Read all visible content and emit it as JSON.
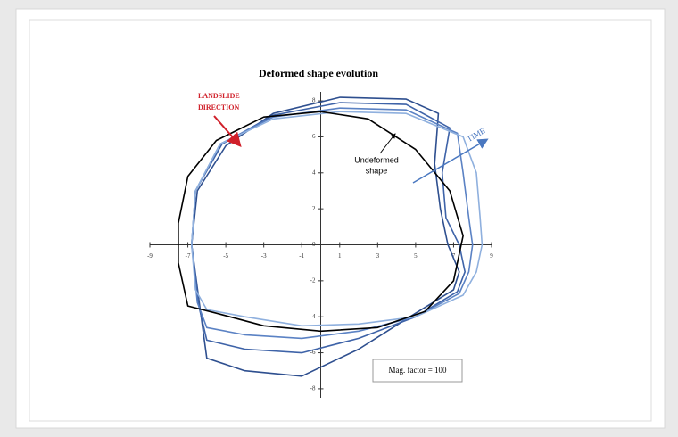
{
  "chart_data": {
    "type": "line",
    "title": "Deformed shape evolution",
    "xlim": [
      -9,
      9
    ],
    "ylim": [
      -8.5,
      8.5
    ],
    "xticks": [
      -9,
      -7,
      -5,
      -3,
      -1,
      1,
      3,
      5,
      7,
      9
    ],
    "yticks": [
      -8,
      -6,
      -4,
      -2,
      0,
      2,
      4,
      6,
      8
    ],
    "series": [
      {
        "color": "#2e4f8f",
        "x": [
          -6.8,
          -6.5,
          -5,
          -2.5,
          1,
          4.5,
          6.2,
          6,
          6.3,
          6.7,
          7.3,
          7,
          5,
          2,
          -1,
          -4,
          -6,
          -6.3,
          -6.8
        ],
        "values": [
          0,
          3,
          5.5,
          7.3,
          8.2,
          8.1,
          7.3,
          4.5,
          2,
          0,
          -1.5,
          -2.5,
          -3.8,
          -5.8,
          -7.3,
          -7,
          -6.3,
          -4,
          0
        ]
      },
      {
        "color": "#3e63a8",
        "x": [
          -6.8,
          -6.6,
          -5.2,
          -2.5,
          1,
          4.5,
          6.8,
          6.4,
          6.6,
          7.3,
          7.6,
          7.2,
          5,
          2,
          -1,
          -4,
          -6,
          -6.4,
          -6.8
        ],
        "values": [
          0,
          3,
          5.6,
          7.2,
          7.9,
          7.8,
          6.5,
          4,
          1.5,
          0,
          -1.5,
          -2.6,
          -4,
          -5.2,
          -6,
          -5.8,
          -5.3,
          -3.5,
          0
        ]
      },
      {
        "color": "#5b82c4",
        "x": [
          -6.8,
          -6.6,
          -5.3,
          -2.5,
          1,
          4.5,
          7.2,
          7.5,
          7.8,
          8,
          7.8,
          7.3,
          5,
          2,
          -1,
          -4,
          -6,
          -6.5,
          -6.8
        ],
        "values": [
          0,
          3,
          5.6,
          7.1,
          7.6,
          7.5,
          6.2,
          4,
          1.5,
          0,
          -1.5,
          -2.7,
          -4,
          -4.8,
          -5.2,
          -5,
          -4.6,
          -3.2,
          0
        ]
      },
      {
        "color": "#8fb0de",
        "x": [
          -6.8,
          -6.6,
          -5.3,
          -2.5,
          1,
          4.5,
          7.5,
          8.2,
          8.4,
          8.5,
          8.2,
          7.5,
          5,
          2,
          -1,
          -4,
          -6,
          -6.6,
          -6.8
        ],
        "values": [
          0,
          3,
          5.6,
          7,
          7.4,
          7.3,
          6,
          4,
          1.5,
          0,
          -1.5,
          -2.8,
          -4,
          -4.4,
          -4.5,
          -4,
          -3.6,
          -2.5,
          0
        ]
      },
      {
        "color": "#000000",
        "x": [
          -7.5,
          -7,
          -5.5,
          -3,
          0,
          2.5,
          5,
          6.8,
          7.5,
          7,
          5.5,
          3,
          0,
          -3,
          -5.5,
          -7,
          -7.5,
          -7.5
        ],
        "values": [
          1.2,
          3.8,
          5.8,
          7.1,
          7.4,
          7,
          5.3,
          3,
          0.5,
          -2,
          -3.7,
          -4.6,
          -4.8,
          -4.5,
          -3.8,
          -3.4,
          -1,
          1.2
        ]
      }
    ],
    "annotations": {
      "landslide": [
        "LANDSLIDE",
        "DIRECTION"
      ],
      "undeformed": [
        "Undeformed",
        "shape"
      ],
      "time": "TIME",
      "mag": "Mag. factor = 100"
    }
  }
}
